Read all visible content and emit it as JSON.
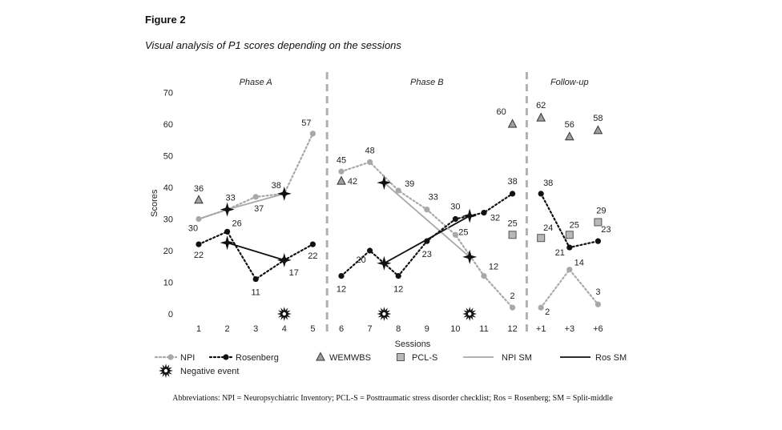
{
  "figure_label": "Figure 2",
  "figure_title": "Visual analysis of P1 scores depending on the sessions",
  "abbreviations_text": "Abbreviations: NPI = Neuropsychiatric Inventory; PCL-S = Posttraumatic stress disorder checklist; Ros = Rosenberg; SM = Split-middle",
  "chart_data": {
    "type": "line",
    "title": "Visual analysis of P1 scores depending on the sessions",
    "xlabel": "Sessions",
    "ylabel": "Scores",
    "ylim": [
      0,
      70
    ],
    "yticks": [
      0,
      10,
      20,
      30,
      40,
      50,
      60,
      70
    ],
    "categories": [
      "1",
      "2",
      "3",
      "4",
      "5",
      "6",
      "7",
      "8",
      "9",
      "10",
      "11",
      "12",
      "+1",
      "+3",
      "+6"
    ],
    "phases": [
      {
        "name": "Phase A",
        "categories": [
          "1",
          "2",
          "3",
          "4",
          "5"
        ]
      },
      {
        "name": "Phase B",
        "categories": [
          "6",
          "7",
          "8",
          "9",
          "10",
          "11",
          "12"
        ]
      },
      {
        "name": "Follow-up",
        "categories": [
          "+1",
          "+3",
          "+6"
        ]
      }
    ],
    "series": [
      {
        "name": "NPI",
        "style": "dotted-line-circle",
        "color": "#a8a8a8",
        "values": [
          30,
          33,
          37,
          38,
          57,
          45,
          48,
          39,
          33,
          25,
          12,
          2,
          2,
          14,
          3
        ],
        "labels": [
          "30",
          "33",
          "37",
          "38",
          "57",
          "45",
          "48",
          "39",
          "33",
          "25",
          "12",
          "2",
          "2",
          "14",
          "3"
        ]
      },
      {
        "name": "Rosenberg",
        "style": "dotted-line-circle",
        "color": "#111111",
        "values": [
          22,
          26,
          11,
          17,
          22,
          12,
          20,
          12,
          23,
          30,
          32,
          38,
          38,
          21,
          23
        ],
        "labels": [
          "22",
          "26",
          "11",
          "17",
          "22",
          "12",
          "20",
          "12",
          "23",
          "30",
          "32",
          "38",
          "38",
          "21",
          "23"
        ]
      },
      {
        "name": "WEMWBS",
        "style": "triangle",
        "points": [
          {
            "x": "1",
            "y": 36,
            "label": "36"
          },
          {
            "x": "6",
            "y": 42,
            "label": "42"
          },
          {
            "x": "12",
            "y": 60,
            "label": "60"
          },
          {
            "x": "+1",
            "y": 62,
            "label": "62"
          },
          {
            "x": "+3",
            "y": 56,
            "label": "56"
          },
          {
            "x": "+6",
            "y": 58,
            "label": "58"
          }
        ]
      },
      {
        "name": "PCL-S",
        "style": "square",
        "points": [
          {
            "x": "12",
            "y": 25,
            "label": "25"
          },
          {
            "x": "+1",
            "y": 24,
            "label": "24"
          },
          {
            "x": "+3",
            "y": 25,
            "label": "25"
          },
          {
            "x": "+6",
            "y": 29,
            "label": "29"
          }
        ]
      },
      {
        "name": "NPI SM",
        "style": "solid-gray",
        "segments": [
          [
            {
              "x": 1,
              "y": 30
            },
            {
              "x": 2,
              "y": 33
            },
            {
              "x": 4,
              "y": 38
            }
          ],
          [
            {
              "x": 7.5,
              "y": 41.5
            },
            {
              "x": 10.5,
              "y": 18
            }
          ]
        ]
      },
      {
        "name": "Ros SM",
        "style": "solid-black",
        "segments": [
          [
            {
              "x": 2,
              "y": 22.5
            },
            {
              "x": 4,
              "y": 17
            }
          ],
          [
            {
              "x": 7.5,
              "y": 16
            },
            {
              "x": 10.5,
              "y": 31
            }
          ]
        ]
      }
    ],
    "split_middle_markers": [
      {
        "x": 2,
        "y": 33
      },
      {
        "x": 4,
        "y": 38
      },
      {
        "x": 2,
        "y": 22.5
      },
      {
        "x": 4,
        "y": 17
      },
      {
        "x": 7.5,
        "y": 41.5
      },
      {
        "x": 10.5,
        "y": 18
      },
      {
        "x": 7.5,
        "y": 16
      },
      {
        "x": 10.5,
        "y": 31
      }
    ],
    "negative_events": [
      {
        "x": 4,
        "y": 0
      },
      {
        "x": 7.5,
        "y": 0
      },
      {
        "x": 10.5,
        "y": 0
      }
    ],
    "legend": [
      {
        "key": "npi",
        "label": "NPI"
      },
      {
        "key": "rosenberg",
        "label": "Rosenberg"
      },
      {
        "key": "wemwbs",
        "label": "WEMWBS"
      },
      {
        "key": "pcls",
        "label": "PCL-S"
      },
      {
        "key": "npi_sm",
        "label": "NPI SM"
      },
      {
        "key": "ros_sm",
        "label": "Ros SM"
      },
      {
        "key": "negative",
        "label": "Negative event"
      }
    ]
  }
}
